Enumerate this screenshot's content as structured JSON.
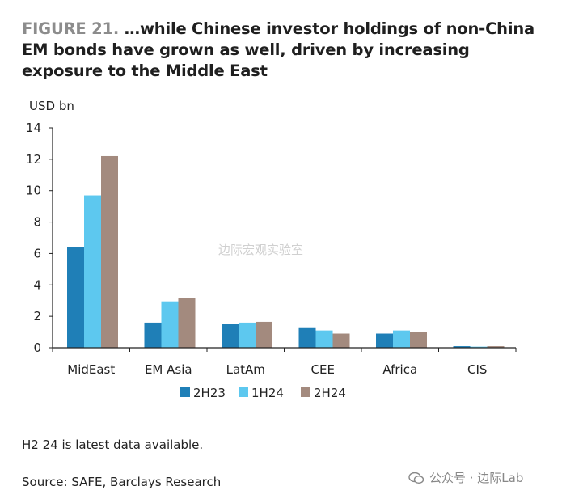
{
  "title_prefix": "FIGURE 21.",
  "title_text": " …while Chinese investor holdings of non-China EM bonds have grown as well, driven by increasing exposure to the Middle East",
  "footnote": "H2 24 is latest data available.",
  "source": "Source: SAFE, Barclays Research",
  "watermark_center": "边际宏观实验室",
  "watermark_br": "公众号 · 边际Lab",
  "colors": {
    "2H23": "#1f7fb7",
    "1H24": "#5dc8ef",
    "2H24": "#a38a7e"
  },
  "chart_data": {
    "type": "bar",
    "title": "…while Chinese investor holdings of non-China EM bonds have grown as well, driven by increasing exposure to the Middle East",
    "ylabel": "USD bn",
    "xlabel": "",
    "ylim": [
      0,
      14
    ],
    "yticks": [
      0,
      2,
      4,
      6,
      8,
      10,
      12,
      14
    ],
    "categories": [
      "MidEast",
      "EM Asia",
      "LatAm",
      "CEE",
      "Africa",
      "CIS"
    ],
    "series": [
      {
        "name": "2H23",
        "values": [
          6.4,
          1.6,
          1.5,
          1.3,
          0.9,
          0.1
        ]
      },
      {
        "name": "1H24",
        "values": [
          9.7,
          2.95,
          1.6,
          1.1,
          1.1,
          0.07
        ]
      },
      {
        "name": "2H24",
        "values": [
          12.2,
          3.15,
          1.65,
          0.9,
          1.0,
          0.1
        ]
      }
    ],
    "legend": "bottom-center",
    "grid": false
  }
}
